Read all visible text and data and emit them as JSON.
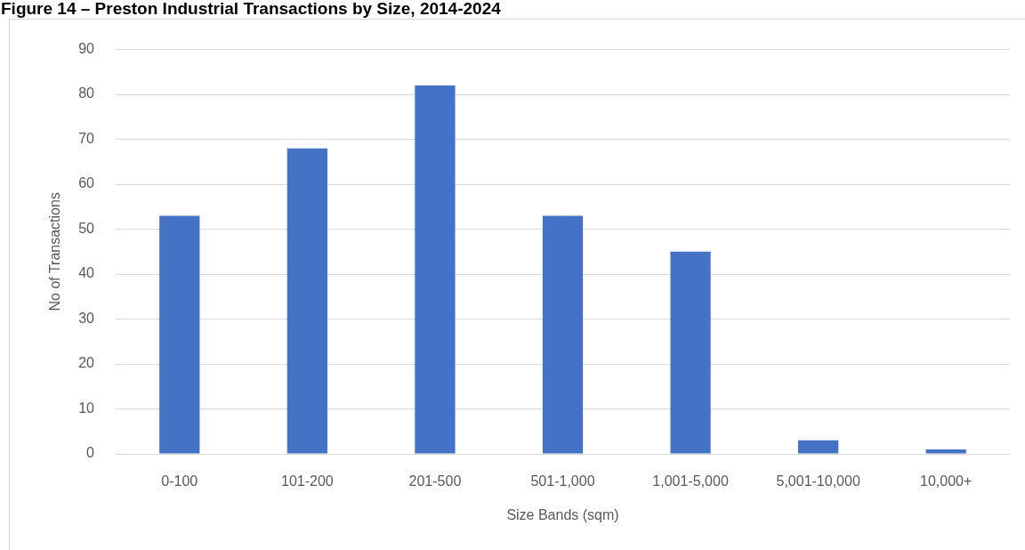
{
  "chart_data": {
    "type": "bar",
    "title": "Figure 14 – Preston Industrial Transactions by Size, 2014-2024",
    "xlabel": "Size Bands (sqm)",
    "ylabel": "No of Transactions",
    "categories": [
      "0-100",
      "101-200",
      "201-500",
      "501-1,000",
      "1,001-5,000",
      "5,001-10,000",
      "10,000+"
    ],
    "values": [
      53,
      68,
      82,
      53,
      45,
      3,
      1
    ],
    "color": "#4472c4",
    "ylim": [
      0,
      90
    ],
    "yticks": [
      0,
      10,
      20,
      30,
      40,
      50,
      60,
      70,
      80,
      90
    ],
    "grid": "y"
  }
}
